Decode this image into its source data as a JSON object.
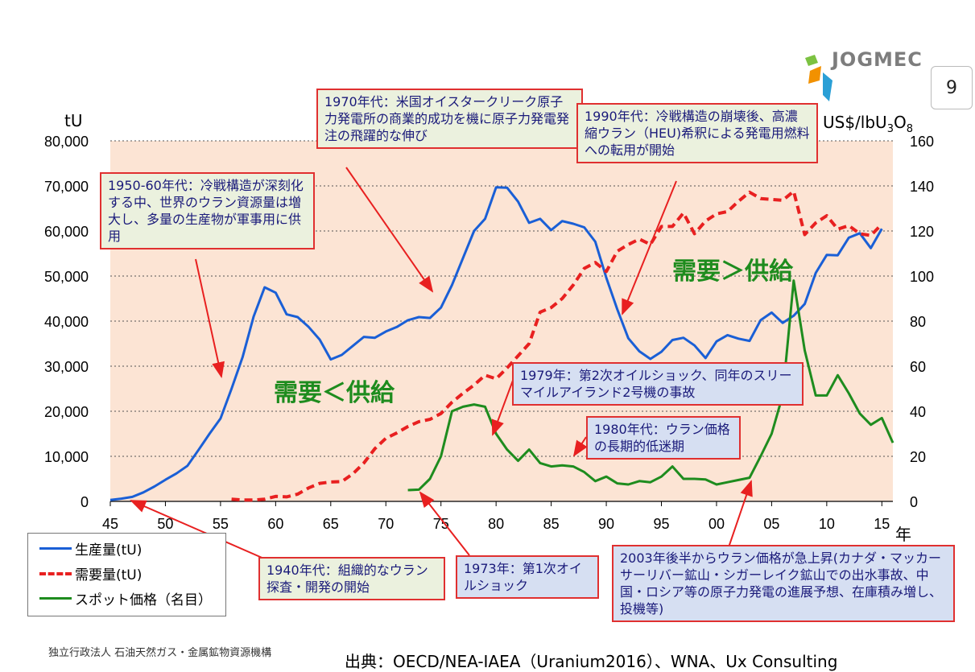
{
  "header": {
    "logo_text": "JOGMEC",
    "page_number": "9"
  },
  "axes": {
    "left_unit": "tU",
    "right_unit_main": "US$/lbU",
    "right_unit_sub1": "3",
    "right_unit_mid": "O",
    "right_unit_sub2": "8",
    "x_unit": "年"
  },
  "annotations": {
    "a1950": "1950-60年代：冷戦構造が深刻化する中、世界のウラン資源量は増大し、多量の生産物が軍事用に供用",
    "a1970": "1970年代：米国オイスタークリーク原子力発電所の商業的成功を機に原子力発電発注の飛躍的な伸び",
    "a1990": "1990年代：冷戦構造の崩壊後、高濃縮ウラン（HEU)希釈による発電用燃料への転用が開始",
    "a1979": "1979年：第2次オイルショック、同年のスリーマイルアイランド2号機の事故",
    "a1980": "1980年代：ウラン価格の長期的低迷期",
    "a1940": "1940年代：組織的なウラン探査・開発の開始",
    "a1973": "1973年：第1次オイルショック",
    "a2003": "2003年後半からウラン価格が急上昇(カナダ・マッカーサーリバー鉱山・シガーレイク鉱山での出水事故、中国・ロシア等の原子力発電の進展予想、在庫積み増し、投機等)"
  },
  "big_labels": {
    "demand_gt_supply": "需要＞供給",
    "demand_lt_supply": "需要＜供給"
  },
  "legend": {
    "production": "生産量(tU)",
    "demand": "需要量(tU)",
    "spot": "スポット価格（名目）"
  },
  "footer": {
    "org": "独立行政法人 石油天然ガス・金属鉱物資源機構",
    "source": "出典：OECD/NEA-IAEA（Uranium2016）、WNA、Ux Consulting"
  },
  "colors": {
    "production": "#1a5fd6",
    "demand": "#e82020",
    "spot": "#1e8c1e",
    "plot_bg": "#fce4d4",
    "arrow": "#e82020"
  },
  "chart_data": {
    "type": "line",
    "x_tick_labels": [
      "45",
      "50",
      "55",
      "60",
      "65",
      "70",
      "75",
      "80",
      "85",
      "90",
      "95",
      "00",
      "05",
      "10",
      "15"
    ],
    "xlim": [
      1945,
      2016
    ],
    "y_left_ticks": [
      "0",
      "10,000",
      "20,000",
      "30,000",
      "40,000",
      "50,000",
      "60,000",
      "70,000",
      "80,000"
    ],
    "ylim_left": [
      0,
      80000
    ],
    "y_right_ticks": [
      "0",
      "20",
      "40",
      "60",
      "80",
      "100",
      "120",
      "140",
      "160"
    ],
    "ylim_right": [
      0,
      160
    ],
    "series": [
      {
        "name": "生産量(tU)",
        "axis": "left",
        "style": "solid",
        "x": [
          1945,
          1946,
          1947,
          1948,
          1949,
          1950,
          1951,
          1952,
          1953,
          1954,
          1955,
          1956,
          1957,
          1958,
          1959,
          1960,
          1961,
          1962,
          1963,
          1964,
          1965,
          1966,
          1967,
          1968,
          1969,
          1970,
          1971,
          1972,
          1973,
          1974,
          1975,
          1976,
          1977,
          1978,
          1979,
          1980,
          1981,
          1982,
          1983,
          1984,
          1985,
          1986,
          1987,
          1988,
          1989,
          1990,
          1991,
          1992,
          1993,
          1994,
          1995,
          1996,
          1997,
          1998,
          1999,
          2000,
          2001,
          2002,
          2003,
          2004,
          2005,
          2006,
          2007,
          2008,
          2009,
          2010,
          2011,
          2012,
          2013,
          2014,
          2015
        ],
        "values": [
          300,
          600,
          1000,
          2000,
          3300,
          4800,
          6200,
          7900,
          11400,
          15000,
          18400,
          25000,
          32000,
          41000,
          47500,
          46300,
          41500,
          40900,
          38700,
          35900,
          31500,
          32500,
          34500,
          36500,
          36300,
          37700,
          38700,
          40200,
          40900,
          40700,
          43000,
          48000,
          54000,
          60000,
          62700,
          69700,
          69600,
          66500,
          61800,
          62700,
          60200,
          62200,
          61600,
          60800,
          57600,
          49600,
          42600,
          36200,
          33300,
          31600,
          33200,
          35800,
          36300,
          34600,
          31800,
          35500,
          36900,
          36100,
          35600,
          40200,
          41900,
          39600,
          41200,
          43800,
          50700,
          54700,
          54600,
          58500,
          59500,
          56200,
          60500
        ]
      },
      {
        "name": "需要量(tU)",
        "axis": "left",
        "style": "dashed",
        "x": [
          1956,
          1957,
          1958,
          1959,
          1960,
          1961,
          1962,
          1963,
          1964,
          1965,
          1966,
          1967,
          1968,
          1969,
          1970,
          1971,
          1972,
          1973,
          1974,
          1975,
          1976,
          1977,
          1978,
          1979,
          1980,
          1981,
          1982,
          1983,
          1984,
          1985,
          1986,
          1987,
          1988,
          1989,
          1990,
          1991,
          1992,
          1993,
          1994,
          1995,
          1996,
          1997,
          1998,
          1999,
          2000,
          2001,
          2002,
          2003,
          2004,
          2005,
          2006,
          2007,
          2008,
          2009,
          2010,
          2011,
          2012,
          2013,
          2014,
          2015
        ],
        "values": [
          500,
          300,
          300,
          500,
          1100,
          1000,
          1600,
          3000,
          4000,
          4300,
          4400,
          6100,
          8500,
          11700,
          14000,
          15200,
          16600,
          17700,
          18200,
          19500,
          22000,
          24000,
          25800,
          28000,
          27200,
          29600,
          32300,
          35000,
          42000,
          43000,
          45000,
          48000,
          51700,
          53000,
          51000,
          55500,
          57000,
          58200,
          57000,
          61000,
          61000,
          64000,
          59400,
          62200,
          63800,
          64300,
          66600,
          68600,
          67200,
          67000,
          66800,
          68800,
          59200,
          61800,
          63400,
          60400,
          61200,
          59400,
          59000,
          61500
        ]
      },
      {
        "name": "スポット価格（名目）",
        "axis": "right",
        "style": "solid",
        "x": [
          1972,
          1973,
          1974,
          1975,
          1976,
          1977,
          1978,
          1979,
          1980,
          1981,
          1982,
          1983,
          1984,
          1985,
          1986,
          1987,
          1988,
          1989,
          1990,
          1991,
          1992,
          1993,
          1994,
          1995,
          1996,
          1997,
          1998,
          1999,
          2000,
          2001,
          2002,
          2003,
          2004,
          2005,
          2006,
          2007,
          2008,
          2009,
          2010,
          2011,
          2012,
          2013,
          2014,
          2015,
          2016
        ],
        "values": [
          5,
          5.2,
          10,
          20,
          40,
          42,
          43,
          42,
          30,
          23,
          18,
          23,
          17,
          15.5,
          16,
          15.5,
          13,
          9,
          11,
          8,
          7.5,
          9,
          8.5,
          11,
          15.5,
          10,
          10,
          9.7,
          7.5,
          8.5,
          9.5,
          10.5,
          20,
          30,
          47,
          98,
          67,
          47,
          47,
          56,
          48,
          39,
          34,
          37,
          26
        ]
      }
    ]
  }
}
